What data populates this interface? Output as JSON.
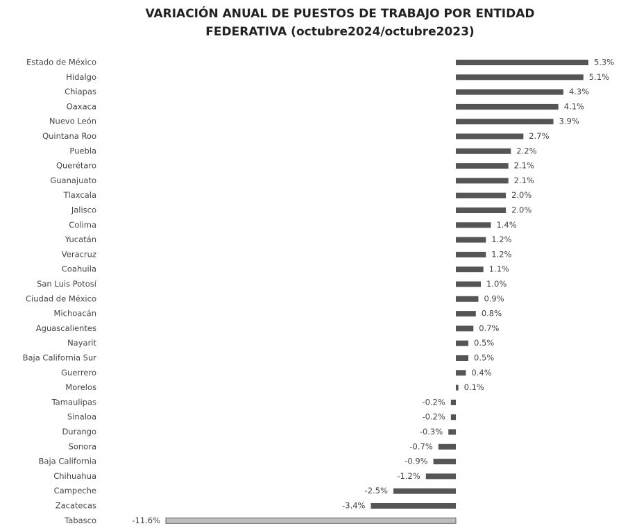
{
  "chart_data": {
    "type": "hbar",
    "title": [
      "VARIACIÓN ANUAL DE PUESTOS DE TRABAJO POR ENTIDAD",
      "FEDERATIVA (octubre2024/octubre2023)"
    ],
    "categories": [
      "Estado de México",
      "Hidalgo",
      "Chiapas",
      "Oaxaca",
      "Nuevo León",
      "Quintana Roo",
      "Puebla",
      "Querétaro",
      "Guanajuato",
      "Tlaxcala",
      "Jalisco",
      "Colima",
      "Yucatán",
      "Veracruz",
      "Coahuila",
      "San Luis Potosí",
      "Ciudad de México",
      "Michoacán",
      "Aguascalientes",
      "Nayarit",
      "Baja California Sur",
      "Guerrero",
      "Morelos",
      "Tamaulipas",
      "Sinaloa",
      "Durango",
      "Sonora",
      "Baja California",
      "Chihuahua",
      "Campeche",
      "Zacatecas",
      "Tabasco"
    ],
    "values": [
      5.3,
      5.1,
      4.3,
      4.1,
      3.9,
      2.7,
      2.2,
      2.1,
      2.1,
      2.0,
      2.0,
      1.4,
      1.2,
      1.2,
      1.1,
      1.0,
      0.9,
      0.8,
      0.7,
      0.5,
      0.5,
      0.4,
      0.1,
      -0.2,
      -0.2,
      -0.3,
      -0.7,
      -0.9,
      -1.2,
      -2.5,
      -3.4,
      -11.6
    ],
    "value_labels": [
      "5.3%",
      "5.1%",
      "4.3%",
      "4.1%",
      "3.9%",
      "2.7%",
      "2.2%",
      "2.1%",
      "2.1%",
      "2.0%",
      "2.0%",
      "1.4%",
      "1.2%",
      "1.2%",
      "1.1%",
      "1.0%",
      "0.9%",
      "0.8%",
      "0.7%",
      "0.5%",
      "0.5%",
      "0.4%",
      "0.1%",
      "-0.2%",
      "-0.2%",
      "-0.3%",
      "-0.7%",
      "-0.9%",
      "-1.2%",
      "-2.5%",
      "-3.4%",
      "-11.6%"
    ],
    "colors": [
      "#555555",
      "#555555",
      "#555555",
      "#555555",
      "#555555",
      "#555555",
      "#555555",
      "#555555",
      "#555555",
      "#555555",
      "#555555",
      "#555555",
      "#555555",
      "#555555",
      "#555555",
      "#555555",
      "#555555",
      "#555555",
      "#555555",
      "#555555",
      "#555555",
      "#555555",
      "#555555",
      "#555555",
      "#555555",
      "#555555",
      "#555555",
      "#555555",
      "#555555",
      "#555555",
      "#555555",
      "#bdbdbd"
    ]
  }
}
